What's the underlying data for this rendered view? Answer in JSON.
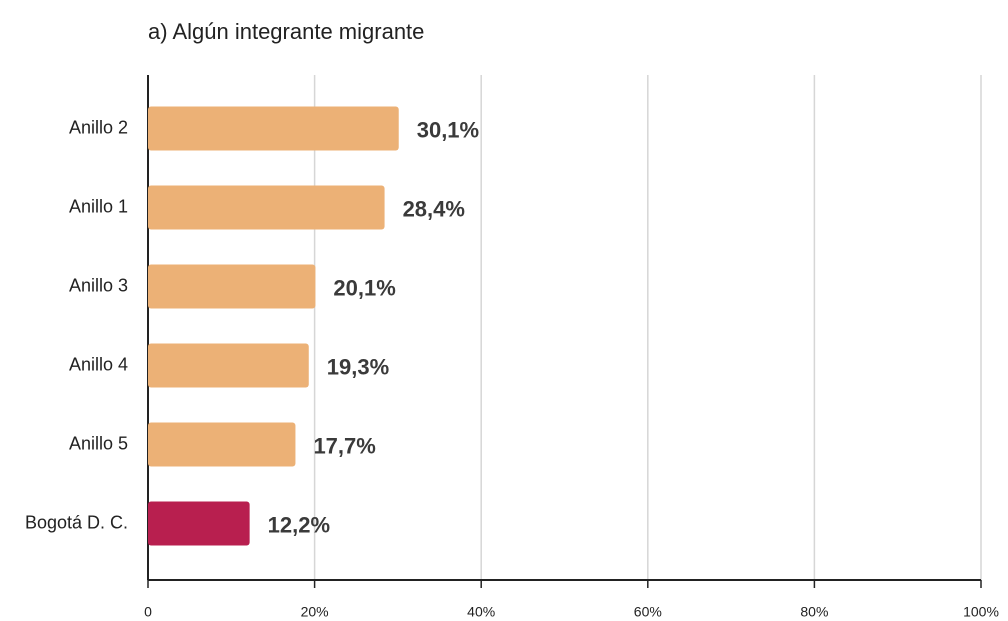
{
  "chart_data": {
    "type": "bar",
    "orientation": "horizontal",
    "title": "a) Algún integrante migrante",
    "categories": [
      "Anillo 2",
      "Anillo 1",
      "Anillo 3",
      "Anillo 4",
      "Anillo 5",
      "Bogotá D. C."
    ],
    "values": [
      30.1,
      28.4,
      20.1,
      19.3,
      17.7,
      12.2
    ],
    "value_labels": [
      "30,1%",
      "28,4%",
      "20,1%",
      "19,3%",
      "17,7%",
      "12,2%"
    ],
    "colors": [
      "#ecb176",
      "#ecb176",
      "#ecb176",
      "#ecb176",
      "#ecb176",
      "#b81f4f"
    ],
    "xlim": [
      0,
      100
    ],
    "xticks": [
      0,
      {
        "value": 20,
        "label": "20%"
      },
      {
        "value": 40,
        "label": "40%"
      },
      {
        "value": 60,
        "label": "60%"
      },
      {
        "value": 80,
        "label": "80%"
      },
      {
        "value": 100,
        "label": "100%"
      }
    ],
    "grid": true
  }
}
